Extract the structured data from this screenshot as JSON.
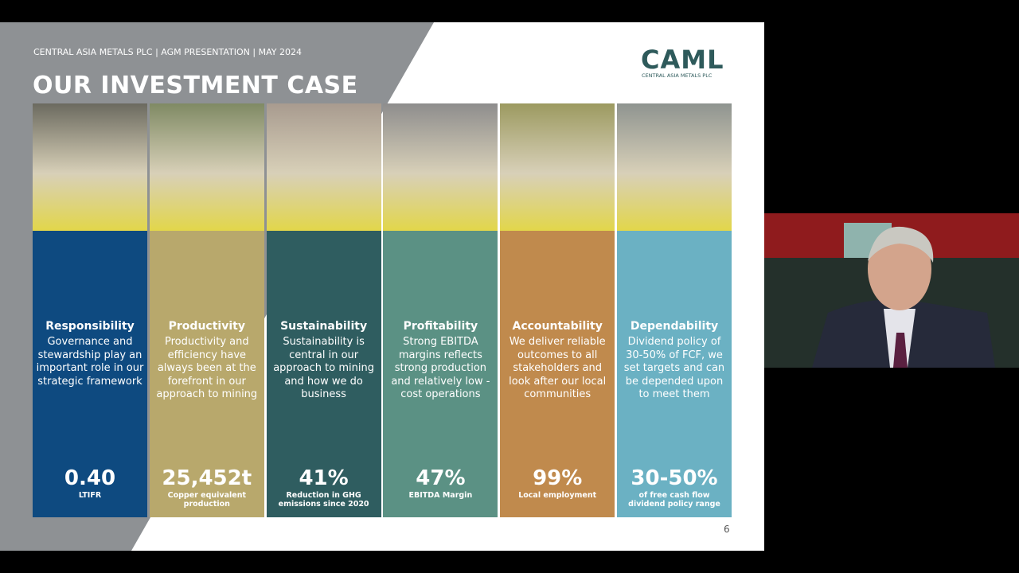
{
  "slide": {
    "header": {
      "subtitle": "CENTRAL ASIA METALS PLC | AGM PRESENTATION | MAY 2024",
      "title": "OUR INVESTMENT CASE"
    },
    "logo": {
      "name": "CAML",
      "tagline": "CENTRAL ASIA METALS PLC"
    },
    "columns": [
      {
        "title": "Responsibility",
        "body": "Governance and stewardship play an important role in our strategic framework",
        "metric": "0.40",
        "metric_label": "LTIFR",
        "color": "#0e4a80"
      },
      {
        "title": "Productivity",
        "body": "Productivity and efficiency have always been at the forefront in our approach to mining",
        "metric": "25,452t",
        "metric_label": "Copper equivalent production",
        "color": "#b8a86c"
      },
      {
        "title": "Sustainability",
        "body": "Sustainability is central in our approach to mining and how we do business",
        "metric": "41%",
        "metric_label": "Reduction in GHG emissions since 2020",
        "color": "#2f5d60"
      },
      {
        "title": "Profitability",
        "body": "Strong EBITDA margins reflects strong production and relatively low - cost operations",
        "metric": "47%",
        "metric_label": "EBITDA Margin",
        "color": "#5b9184"
      },
      {
        "title": "Accountability",
        "body": "We deliver reliable outcomes to all stakeholders and look after our local communities",
        "metric": "99%",
        "metric_label": "Local employment",
        "color": "#c08a4d"
      },
      {
        "title": "Dependability",
        "body": "Dividend policy of 30-50% of FCF, we set targets and can be depended upon to meet them",
        "metric": "30-50%",
        "metric_label": "of free cash flow dividend policy range",
        "color": "#6bb1c3"
      }
    ],
    "page_number": "6"
  }
}
